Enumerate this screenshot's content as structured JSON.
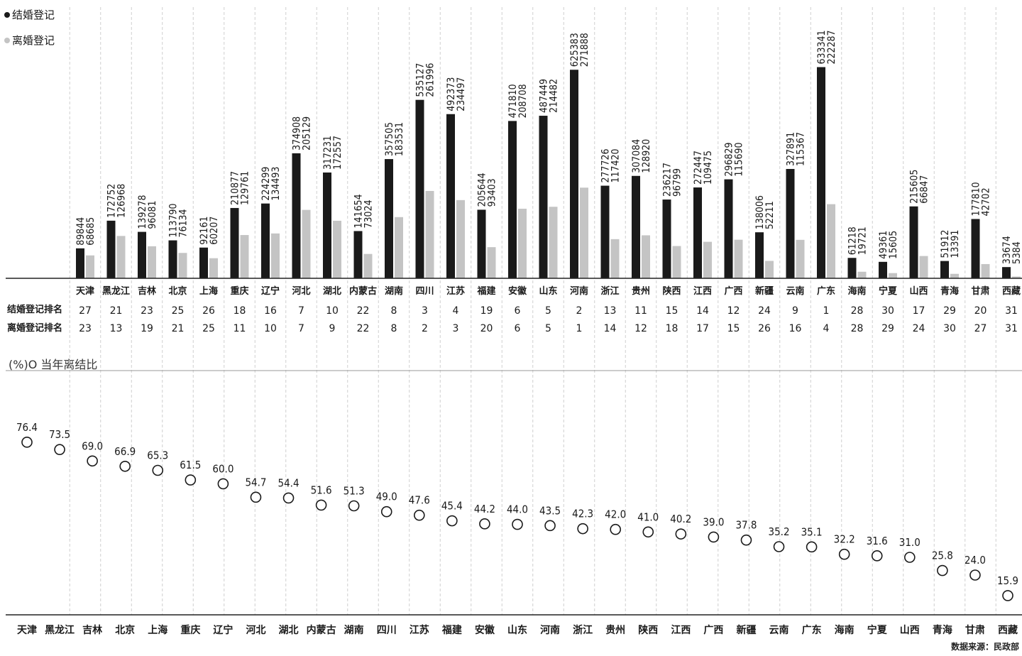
{
  "legend": {
    "marriage": "结婚登记",
    "divorce": "离婚登记",
    "marriage_color": "#1a1a1a",
    "divorce_color": "#c4c4c4"
  },
  "rank_labels": {
    "marriage": "结婚登记排名",
    "divorce": "离婚登记排名"
  },
  "ratio_title": "(%)O 当年离结比",
  "source": "数据来源：民政部",
  "chart_data": [
    {
      "type": "bar",
      "categories": [
        "天津",
        "黑龙江",
        "吉林",
        "北京",
        "上海",
        "重庆",
        "辽宁",
        "河北",
        "湖北",
        "内蒙古",
        "湖南",
        "四川",
        "江苏",
        "福建",
        "安徽",
        "山东",
        "河南",
        "浙江",
        "贵州",
        "陕西",
        "江西",
        "广西",
        "新疆",
        "云南",
        "广东",
        "海南",
        "宁夏",
        "山西",
        "青海",
        "甘肃",
        "西藏"
      ],
      "series": [
        {
          "name": "结婚登记",
          "values": [
            89844,
            172752,
            139278,
            113790,
            92161,
            210877,
            224299,
            374908,
            317231,
            141654,
            357505,
            535127,
            492373,
            205644,
            471810,
            487449,
            625383,
            277726,
            307084,
            236217,
            272447,
            296829,
            138006,
            327891,
            633341,
            61218,
            49361,
            215605,
            51912,
            177810,
            33674
          ]
        },
        {
          "name": "离婚登记",
          "values": [
            68685,
            126968,
            96081,
            76134,
            60207,
            129761,
            134493,
            205129,
            172557,
            73024,
            183531,
            261996,
            234497,
            93403,
            208708,
            214482,
            271888,
            117420,
            128920,
            96799,
            109475,
            115690,
            52211,
            115367,
            222287,
            19721,
            15605,
            66847,
            13391,
            42702,
            5384
          ]
        }
      ],
      "ranks": {
        "marriage": [
          27,
          21,
          23,
          25,
          26,
          18,
          16,
          7,
          10,
          22,
          8,
          3,
          4,
          19,
          6,
          5,
          2,
          13,
          11,
          15,
          14,
          12,
          24,
          9,
          1,
          28,
          30,
          17,
          29,
          20,
          31
        ],
        "divorce": [
          23,
          13,
          19,
          21,
          25,
          11,
          10,
          7,
          9,
          22,
          8,
          2,
          3,
          20,
          6,
          5,
          1,
          14,
          12,
          18,
          17,
          15,
          26,
          16,
          4,
          28,
          29,
          24,
          30,
          27,
          31
        ]
      },
      "ylim": [
        0,
        660000
      ]
    },
    {
      "type": "scatter",
      "categories": [
        "天津",
        "黑龙江",
        "吉林",
        "北京",
        "上海",
        "重庆",
        "辽宁",
        "河北",
        "湖北",
        "内蒙古",
        "湖南",
        "四川",
        "江苏",
        "福建",
        "安徽",
        "山东",
        "河南",
        "浙江",
        "贵州",
        "陕西",
        "江西",
        "广西",
        "新疆",
        "云南",
        "广东",
        "海南",
        "宁夏",
        "山西",
        "青海",
        "甘肃",
        "西藏"
      ],
      "values": [
        "76.4",
        "73.5",
        "69.0",
        "66.9",
        "65.3",
        "61.5",
        "60.0",
        "54.7",
        "54.4",
        "51.6",
        "51.3",
        "49.0",
        "47.6",
        "45.4",
        "44.2",
        "44.0",
        "43.5",
        "42.3",
        "42.0",
        "41.0",
        "40.2",
        "39.0",
        "37.8",
        "35.2",
        "35.1",
        "32.2",
        "31.6",
        "31.0",
        "25.8",
        "24.0",
        "15.9"
      ],
      "ylabel": "(%)",
      "legend": "当年离结比"
    }
  ]
}
